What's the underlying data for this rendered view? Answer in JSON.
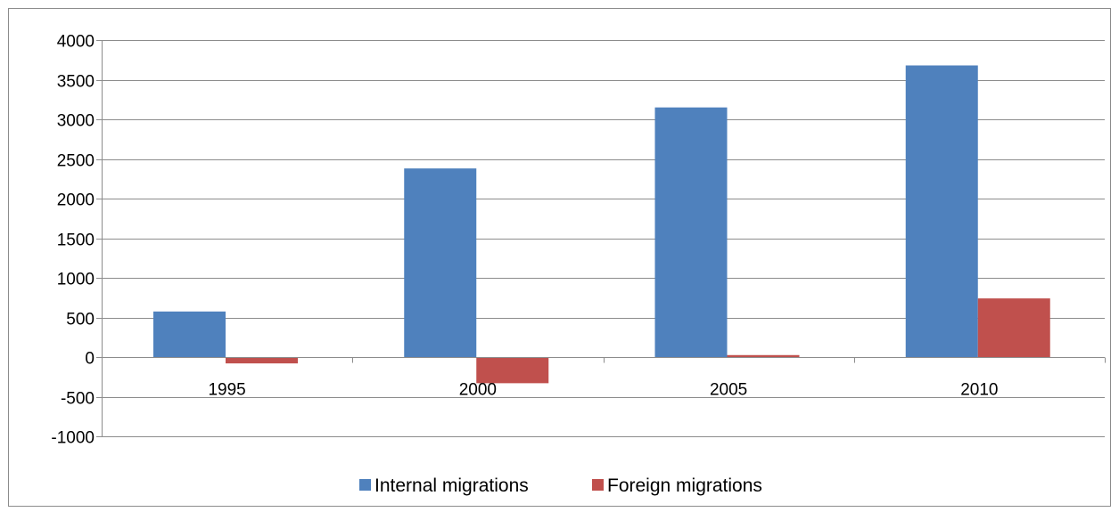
{
  "chart_data": {
    "type": "bar",
    "categories": [
      "1995",
      "2000",
      "2005",
      "2010"
    ],
    "series": [
      {
        "name": "Internal migrations",
        "color": "#4f81bd",
        "values": [
          575,
          2380,
          3150,
          3680
        ]
      },
      {
        "name": "Foreign migrations",
        "color": "#c0504d",
        "values": [
          -80,
          -330,
          25,
          740
        ]
      }
    ],
    "ylim": [
      -1000,
      4000
    ],
    "yticks": [
      -1000,
      -500,
      0,
      500,
      1000,
      1500,
      2000,
      2500,
      3000,
      3500,
      4000
    ],
    "title": "",
    "xlabel": "",
    "ylabel": "",
    "grid": true,
    "legend_position": "bottom"
  }
}
